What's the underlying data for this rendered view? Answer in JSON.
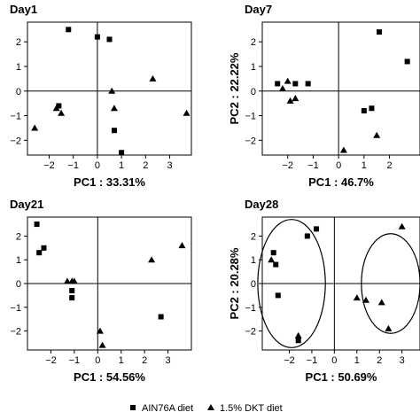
{
  "chart_data": [
    {
      "type": "scatter",
      "title": "Day1",
      "xlabel": "PC1 : 33.31%",
      "ylabel": "",
      "xlim": [
        -2.9,
        3.9
      ],
      "ylim": [
        -2.6,
        2.8
      ],
      "xticks": [
        -2,
        -1,
        0,
        1,
        2,
        3
      ],
      "yticks": [
        -2,
        -1,
        0,
        1,
        2
      ],
      "series": [
        {
          "name": "AIN76A diet",
          "marker": "square",
          "points": [
            [
              -1.2,
              2.5
            ],
            [
              0.0,
              2.2
            ],
            [
              0.5,
              2.1
            ],
            [
              -1.6,
              -0.6
            ],
            [
              0.7,
              -1.6
            ],
            [
              1.0,
              -2.5
            ]
          ]
        },
        {
          "name": "1.5% DKT diet",
          "marker": "triangle",
          "points": [
            [
              -2.6,
              -1.5
            ],
            [
              -1.7,
              -0.7
            ],
            [
              -1.5,
              -0.9
            ],
            [
              0.6,
              0.0
            ],
            [
              0.7,
              -0.7
            ],
            [
              2.3,
              0.5
            ],
            [
              3.7,
              -0.9
            ]
          ]
        }
      ]
    },
    {
      "type": "scatter",
      "title": "Day7",
      "xlabel": "PC1 : 46.7%",
      "ylabel": "PC2 : 22.22%",
      "xlim": [
        -3.0,
        3.2
      ],
      "ylim": [
        -2.6,
        2.8
      ],
      "xticks": [
        -2,
        -1,
        0,
        1,
        2
      ],
      "yticks": [
        -2,
        -1,
        0,
        1,
        2
      ],
      "series": [
        {
          "name": "AIN76A diet",
          "marker": "square",
          "points": [
            [
              -2.4,
              0.3
            ],
            [
              -1.7,
              0.3
            ],
            [
              -1.2,
              0.3
            ],
            [
              1.0,
              -0.8
            ],
            [
              1.3,
              -0.7
            ],
            [
              1.6,
              2.4
            ],
            [
              2.7,
              1.2
            ]
          ]
        },
        {
          "name": "1.5% DKT diet",
          "marker": "triangle",
          "points": [
            [
              -2.2,
              0.1
            ],
            [
              -2.0,
              0.4
            ],
            [
              -1.9,
              -0.4
            ],
            [
              -1.7,
              -0.3
            ],
            [
              0.2,
              -2.4
            ],
            [
              1.5,
              -1.8
            ]
          ]
        }
      ]
    },
    {
      "type": "scatter",
      "title": "Day21",
      "xlabel": "PC1 : 54.56%",
      "ylabel": "",
      "xlim": [
        -3.0,
        4.0
      ],
      "ylim": [
        -2.8,
        2.8
      ],
      "xticks": [
        -2,
        -1,
        0,
        1,
        2,
        3
      ],
      "yticks": [
        -2,
        -1,
        0,
        1,
        2
      ],
      "series": [
        {
          "name": "AIN76A diet",
          "marker": "square",
          "points": [
            [
              -2.6,
              2.5
            ],
            [
              -2.5,
              1.3
            ],
            [
              -2.3,
              1.5
            ],
            [
              -1.1,
              -0.3
            ],
            [
              -1.1,
              -0.6
            ],
            [
              2.7,
              -1.4
            ]
          ]
        },
        {
          "name": "1.5% DKT diet",
          "marker": "triangle",
          "points": [
            [
              -1.3,
              0.1
            ],
            [
              -1.1,
              0.1
            ],
            [
              -1.0,
              0.1
            ],
            [
              0.1,
              -2.0
            ],
            [
              0.2,
              -2.6
            ],
            [
              2.3,
              1.0
            ],
            [
              3.6,
              1.6
            ]
          ]
        }
      ]
    },
    {
      "type": "scatter",
      "title": "Day28",
      "xlabel": "PC1 : 50.69%",
      "ylabel": "PC2 : 20.28%",
      "xlim": [
        -3.2,
        3.8
      ],
      "ylim": [
        -2.8,
        2.8
      ],
      "xticks": [
        -2,
        -1,
        0,
        1,
        2,
        3
      ],
      "yticks": [
        -2,
        -1,
        0,
        1,
        2
      ],
      "series": [
        {
          "name": "AIN76A diet",
          "marker": "square",
          "points": [
            [
              -2.7,
              1.3
            ],
            [
              -2.6,
              0.8
            ],
            [
              -2.5,
              -0.5
            ],
            [
              -1.6,
              -2.4
            ],
            [
              -1.2,
              2.0
            ],
            [
              -0.8,
              2.3
            ]
          ]
        },
        {
          "name": "1.5% DKT diet",
          "marker": "triangle",
          "points": [
            [
              -2.8,
              1.0
            ],
            [
              -1.6,
              -2.2
            ],
            [
              1.0,
              -0.6
            ],
            [
              1.4,
              -0.7
            ],
            [
              2.1,
              -0.8
            ],
            [
              2.4,
              -1.9
            ],
            [
              3.0,
              2.4
            ]
          ]
        }
      ],
      "ellipses": [
        {
          "center": [
            -1.9,
            0.0
          ],
          "radii": [
            1.5,
            2.7
          ]
        },
        {
          "center": [
            2.5,
            0.0
          ],
          "radii": [
            1.3,
            2.1
          ]
        }
      ]
    }
  ],
  "legend": [
    {
      "label": "AIN76A diet",
      "marker": "square"
    },
    {
      "label": "1.5% DKT diet",
      "marker": "triangle"
    }
  ],
  "colors": {
    "marker": "#000000",
    "axis": "#000000"
  }
}
